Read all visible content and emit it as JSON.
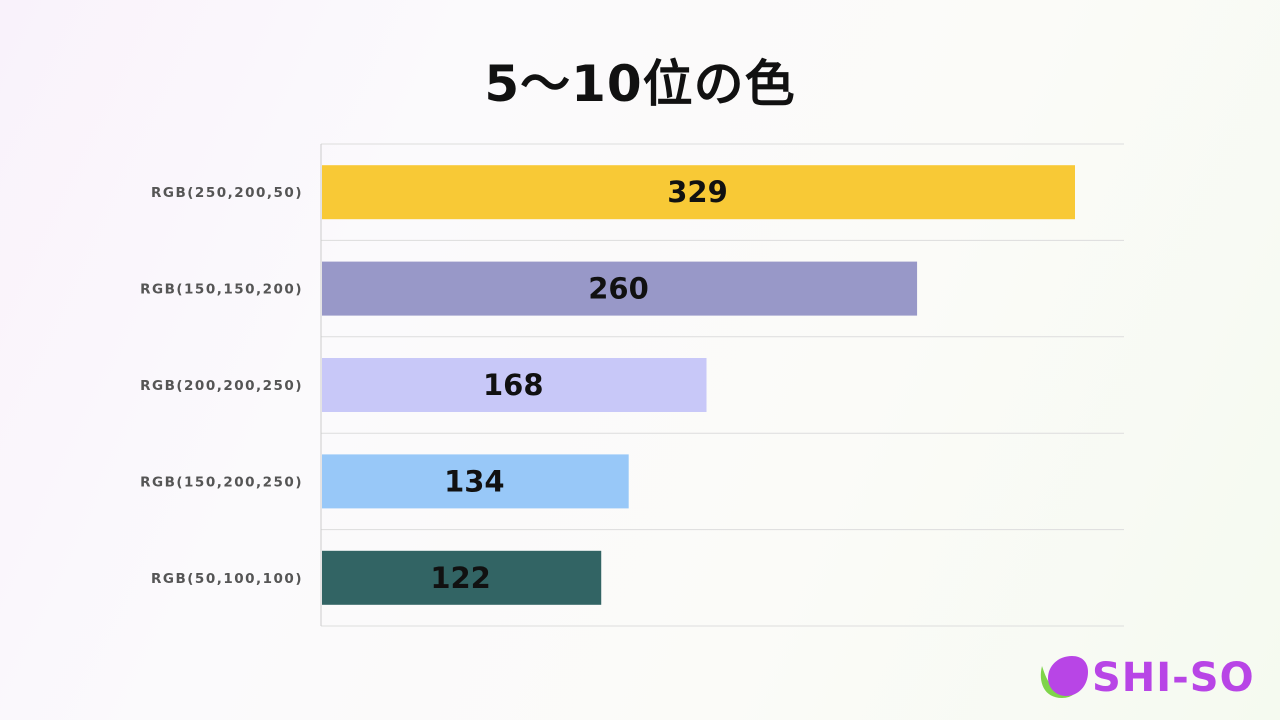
{
  "title": "5〜10位の色",
  "logo": {
    "text": "SHI-SO",
    "leaf_icon": "shiso-leaf-icon"
  },
  "colors": {
    "grid": "#dddddd",
    "axis": "#cccccc",
    "bars": [
      "#f8c936",
      "#9898c8",
      "#c8c8f8",
      "#98c8f8",
      "#326464"
    ],
    "logo_purple": "#b845e6",
    "logo_green": "#7fd44a"
  },
  "chart_data": {
    "type": "bar",
    "orientation": "horizontal",
    "title": "5〜10位の色",
    "categories": [
      "RGB(250,200,50)",
      "RGB(150,150,200)",
      "RGB(200,200,250)",
      "RGB(150,200,250)",
      "RGB(50,100,100)"
    ],
    "values": [
      329,
      260,
      168,
      134,
      122
    ],
    "xlim": [
      0,
      350
    ],
    "grid": true,
    "data_labels": true,
    "legend": "none"
  }
}
